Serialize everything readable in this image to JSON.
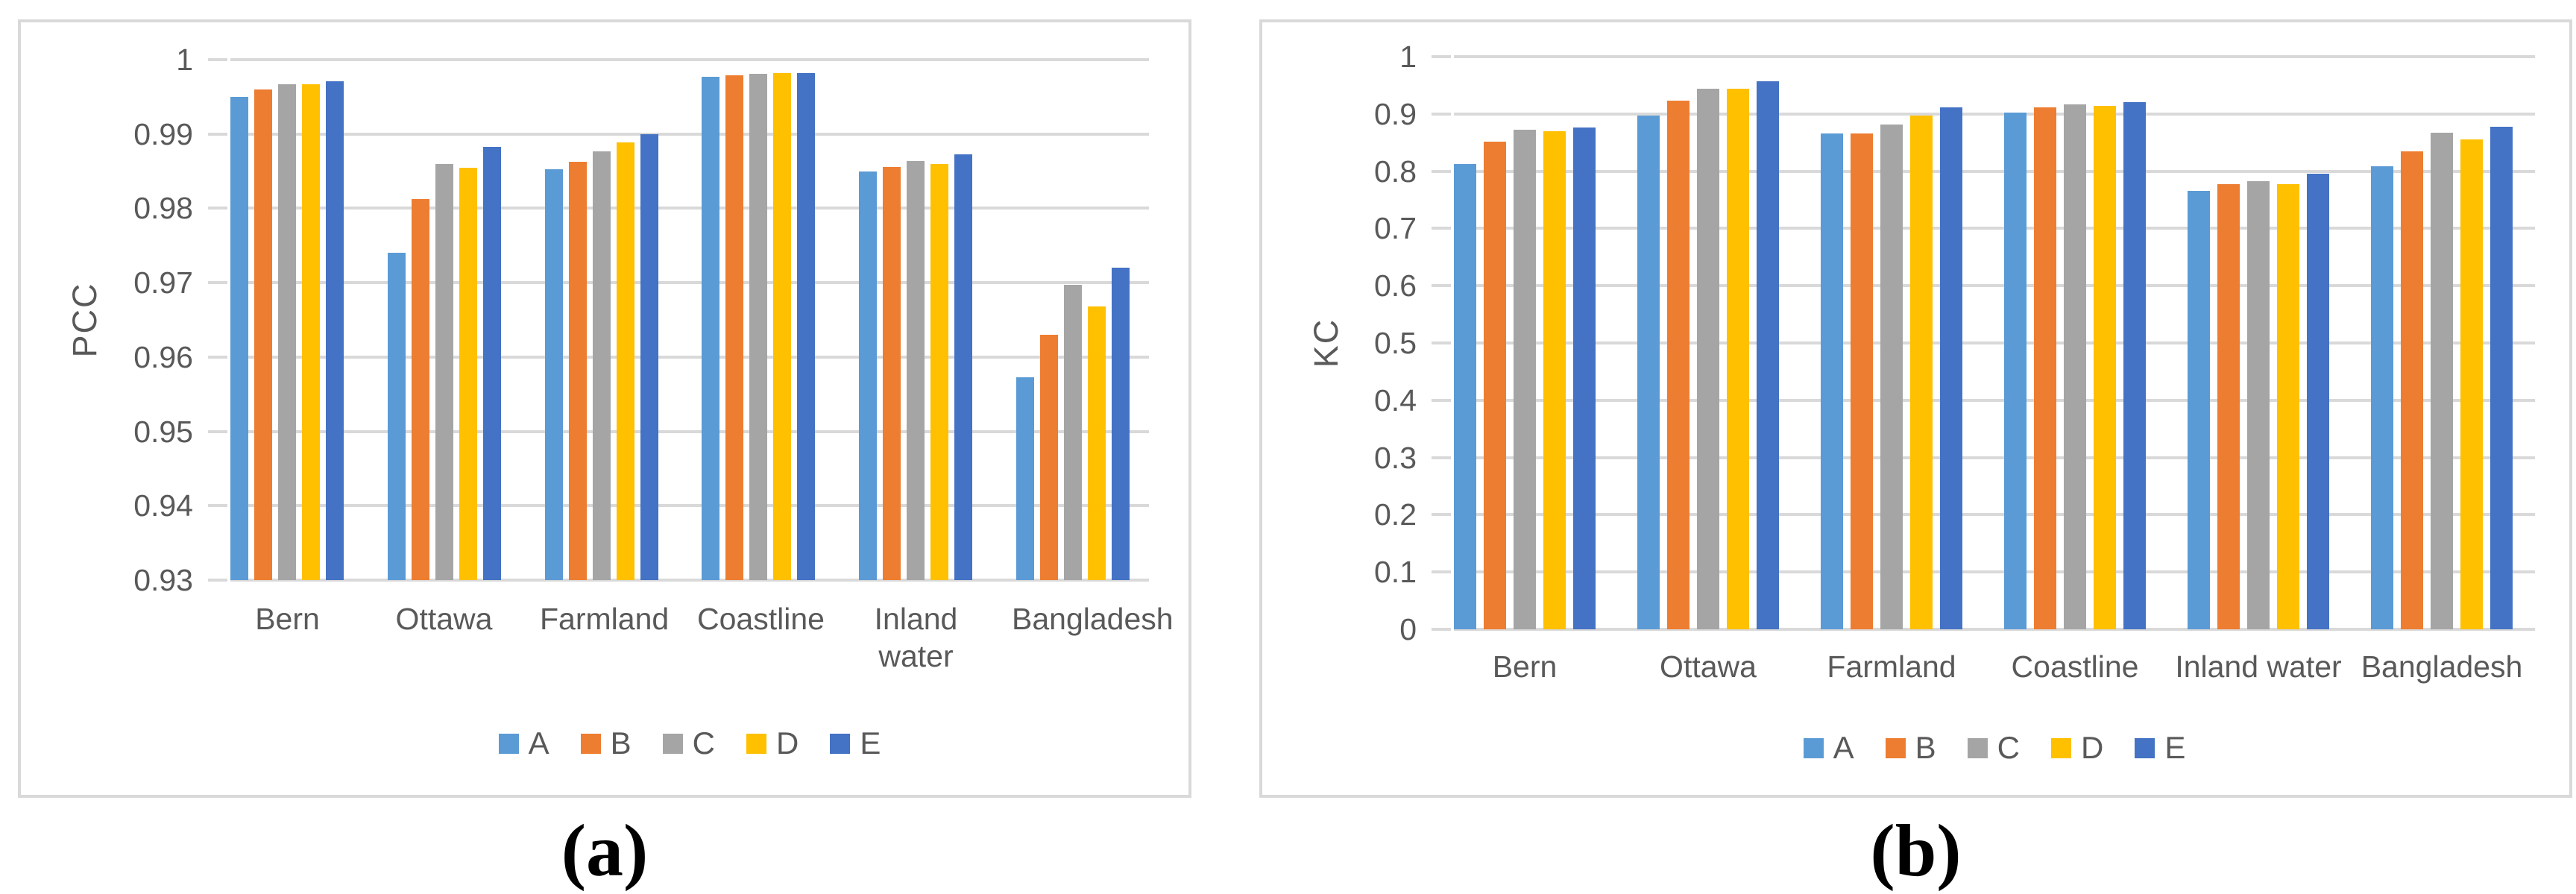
{
  "chart_data": [
    {
      "id": "pcc-chart",
      "type": "bar",
      "title": "",
      "xlabel": "",
      "ylabel": "PCC",
      "caption": "(a)",
      "grid": true,
      "legend_position": "bottom",
      "categories": [
        "Bern",
        "Ottawa",
        "Farmland",
        "Coastline",
        "Inland water",
        "Bangladesh"
      ],
      "series": [
        {
          "name": "A",
          "color": "#5B9BD5",
          "values": [
            0.995,
            0.974,
            0.9853,
            0.9977,
            0.985,
            0.9573
          ]
        },
        {
          "name": "B",
          "color": "#ED7D31",
          "values": [
            0.996,
            0.9812,
            0.9863,
            0.9979,
            0.9856,
            0.963
          ]
        },
        {
          "name": "C",
          "color": "#A5A5A5",
          "values": [
            0.9967,
            0.986,
            0.9877,
            0.9981,
            0.9864,
            0.9697
          ]
        },
        {
          "name": "D",
          "color": "#FFC000",
          "values": [
            0.9967,
            0.9855,
            0.9889,
            0.9982,
            0.986,
            0.9668
          ]
        },
        {
          "name": "E",
          "color": "#4472C4",
          "values": [
            0.9971,
            0.9883,
            0.99,
            0.9982,
            0.9873,
            0.972
          ]
        }
      ],
      "ylim": [
        0.93,
        1.0
      ],
      "yticks": [
        "1",
        "0.99",
        "0.98",
        "0.97",
        "0.96",
        "0.95",
        "0.94",
        "0.93"
      ]
    },
    {
      "id": "kc-chart",
      "type": "bar",
      "title": "",
      "xlabel": "",
      "ylabel": "KC",
      "caption": "(b)",
      "grid": true,
      "legend_position": "bottom",
      "categories": [
        "Bern",
        "Ottawa",
        "Farmland",
        "Coastline",
        "Inland water",
        "Bangladesh"
      ],
      "series": [
        {
          "name": "A",
          "color": "#5B9BD5",
          "values": [
            0.812,
            0.897,
            0.866,
            0.902,
            0.765,
            0.808
          ]
        },
        {
          "name": "B",
          "color": "#ED7D31",
          "values": [
            0.851,
            0.923,
            0.866,
            0.911,
            0.777,
            0.835
          ]
        },
        {
          "name": "C",
          "color": "#A5A5A5",
          "values": [
            0.872,
            0.944,
            0.881,
            0.917,
            0.783,
            0.867
          ]
        },
        {
          "name": "D",
          "color": "#FFC000",
          "values": [
            0.87,
            0.944,
            0.897,
            0.914,
            0.777,
            0.856
          ]
        },
        {
          "name": "E",
          "color": "#4472C4",
          "values": [
            0.876,
            0.957,
            0.911,
            0.921,
            0.796,
            0.877
          ]
        }
      ],
      "ylim": [
        0.0,
        1.0
      ],
      "yticks": [
        "1",
        "0.9",
        "0.8",
        "0.7",
        "0.6",
        "0.5",
        "0.4",
        "0.3",
        "0.2",
        "0.1",
        "0"
      ]
    }
  ],
  "colors": {
    "gridline": "#d9d9d9",
    "axis_text": "#595959",
    "panel_border": "#d9d9d9",
    "background": "#ffffff"
  }
}
